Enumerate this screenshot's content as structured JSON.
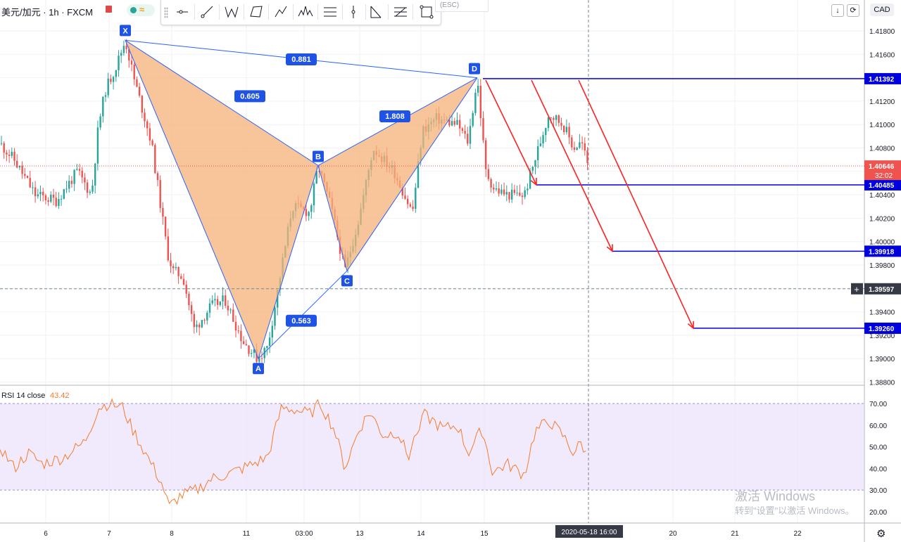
{
  "header": {
    "title": "美元/加元 · 1h · FXCM",
    "currency": "CAD",
    "esc_hint": "(ESC)",
    "scroll_down_icon": "↓",
    "reset_icon": "⟳"
  },
  "toolbar": {
    "tools": [
      "trend-line",
      "ray",
      "xabcd-pattern",
      "cypher-pattern",
      "abcd-pattern",
      "head-and-shoulders",
      "parallel-channel",
      "vertical-line",
      "fib-wedge",
      "fib-retracement",
      "rectangle"
    ]
  },
  "colors": {
    "pattern_fill": "#f5b27a",
    "pattern_edge": "#2962ff",
    "level_line": "#0000dd",
    "arrow": "#ff2020",
    "candle_up": "#26a69a",
    "candle_down": "#ef5350",
    "rsi_line": "#f57c2c",
    "rsi_band": "#ece1fb"
  },
  "pattern": {
    "points": [
      {
        "label": "X",
        "price": 1.4172
      },
      {
        "label": "A",
        "price": 1.39
      },
      {
        "label": "B",
        "price": 1.4065
      },
      {
        "label": "C",
        "price": 1.3975
      },
      {
        "label": "D",
        "price": 1.414
      }
    ],
    "ratios": [
      "0.605",
      "0.563",
      "1.808",
      "0.881"
    ]
  },
  "price_axis": {
    "ticks": [
      "1.41800",
      "1.41600",
      "1.41400",
      "1.41200",
      "1.41000",
      "1.40800",
      "1.40600",
      "1.40400",
      "1.40200",
      "1.40000",
      "1.39800",
      "1.39600",
      "1.39400",
      "1.39200",
      "1.39000",
      "1.38800"
    ],
    "level_labels": [
      "1.41392",
      "1.40485",
      "1.39918",
      "1.39260"
    ],
    "current_price": "1.40646",
    "countdown": "32:02",
    "crosshair_price": "1.39597"
  },
  "time_axis": {
    "labels": [
      "6",
      "7",
      "8",
      "11",
      "03:00",
      "13",
      "14",
      "15",
      "20",
      "21",
      "22"
    ],
    "crosshair_time": "2020-05-18  16:00"
  },
  "rsi": {
    "label": "RSI 14 close",
    "value": "43.42",
    "ticks": [
      "70.00",
      "60.00",
      "50.00",
      "40.00",
      "30.00",
      "20.00"
    ],
    "upper": 70,
    "lower": 30
  },
  "watermark": {
    "line1": "激活 Windows",
    "line2": "转到\"设置\"以激活 Windows。"
  },
  "chart_data": {
    "type": "candlestick",
    "title": "美元/加元 · 1h · FXCM",
    "ylim": [
      1.3875,
      1.4195
    ],
    "pattern_points": {
      "X": 1.4172,
      "A": 1.39,
      "B": 1.4065,
      "C": 1.3975,
      "D": 1.414
    },
    "levels": [
      1.41392,
      1.40485,
      1.39918,
      1.3926
    ],
    "current_price": 1.40646,
    "rsi_ylim": [
      16,
      74
    ],
    "rsi_last": 43.42
  }
}
